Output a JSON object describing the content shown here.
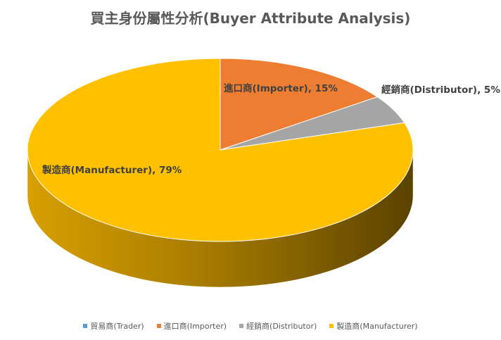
{
  "chart_data": {
    "type": "pie",
    "title": "買主身份屬性分析(Buyer Attribute  Analysis)",
    "style": "3d",
    "slices": [
      {
        "name": "貿易商(Trader)",
        "value": 0,
        "color": "#5B9BD5",
        "label": ""
      },
      {
        "name": "進口商(Importer)",
        "value": 15,
        "color": "#ED7D31",
        "label": "進口商(Importer), 15%"
      },
      {
        "name": "經銷商(Distributor)",
        "value": 5,
        "color": "#A5A5A5",
        "label": "經銷商(Distributor), 5%"
      },
      {
        "name": "製造商(Manufacturer)",
        "value": 79,
        "color": "#FFC000",
        "label": "製造商(Manufacturer), 79%"
      }
    ],
    "legend_position": "bottom"
  }
}
